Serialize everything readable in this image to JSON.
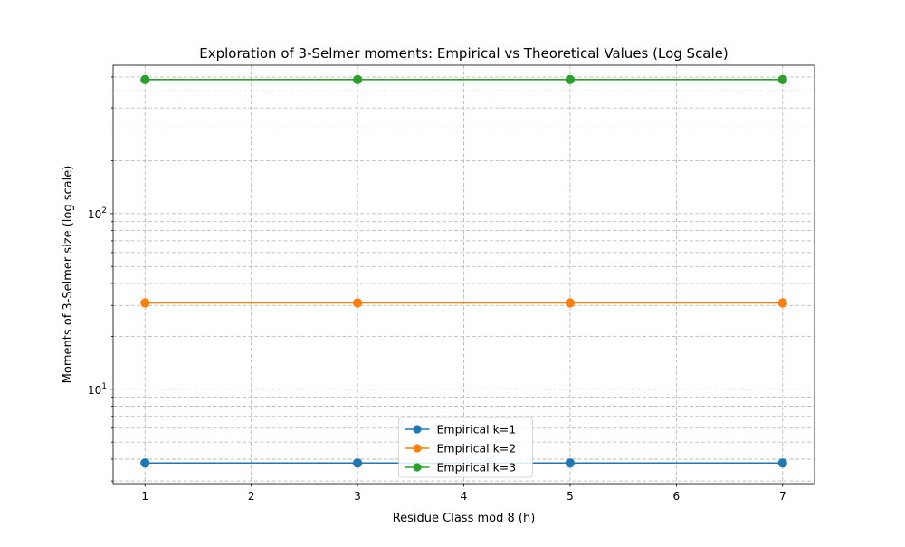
{
  "chart_data": {
    "type": "line",
    "title": "Exploration of 3-Selmer moments: Empirical vs Theoretical Values (Log Scale)",
    "xlabel": "Residue Class mod 8 (h)",
    "ylabel": "Moments of 3-Selmer size (log scale)",
    "x": [
      1,
      3,
      5,
      7
    ],
    "xlim": [
      0.7,
      7.3
    ],
    "xticks": [
      1,
      2,
      3,
      4,
      5,
      6,
      7
    ],
    "yscale": "log",
    "ylim": [
      2.9,
      700
    ],
    "ymajor_ticks": [
      {
        "value": 10,
        "label": "10",
        "sup": "1"
      },
      {
        "value": 100,
        "label": "10",
        "sup": "2"
      }
    ],
    "yminor_ticks": [
      3,
      4,
      5,
      6,
      7,
      8,
      9,
      20,
      30,
      40,
      50,
      60,
      70,
      80,
      90,
      200,
      300,
      400,
      500,
      600
    ],
    "grid": true,
    "grid_includes_minor": true,
    "legend_position": "lower center",
    "series": [
      {
        "name": "Empirical k=1",
        "color": "#1f77b4",
        "values": [
          3.8,
          3.8,
          3.8,
          3.8
        ]
      },
      {
        "name": "Empirical k=2",
        "color": "#ff7f0e",
        "values": [
          31,
          31,
          31,
          31
        ]
      },
      {
        "name": "Empirical k=3",
        "color": "#2ca02c",
        "values": [
          580,
          580,
          580,
          580
        ]
      }
    ]
  }
}
